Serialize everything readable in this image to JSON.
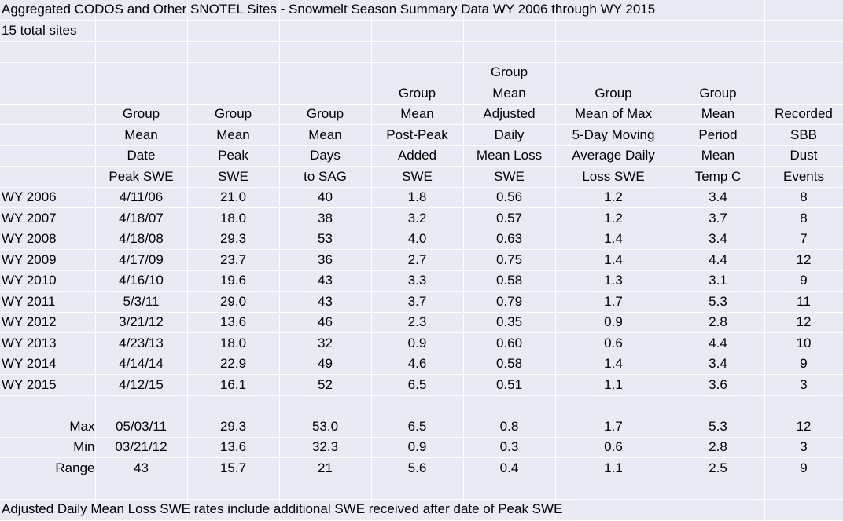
{
  "title": "Aggregated CODOS and Other SNOTEL Sites - Snowmelt Season Summary Data WY 2006 through WY 2015",
  "subtitle": "15 total sites",
  "header_rows": [
    [
      "",
      "",
      "",
      "",
      "",
      "Group",
      "",
      "",
      ""
    ],
    [
      "",
      "",
      "",
      "",
      "Group",
      "Mean",
      "Group",
      "Group",
      ""
    ],
    [
      "",
      "Group",
      "Group",
      "Group",
      "Mean",
      "Adjusted",
      "Mean of Max",
      "Mean",
      "Recorded"
    ],
    [
      "",
      "Mean",
      "Mean",
      "Mean",
      "Post-Peak",
      "Daily",
      "5-Day Moving",
      "Period",
      "SBB"
    ],
    [
      "",
      "Date",
      "Peak",
      "Days",
      "Added",
      "Mean Loss",
      "Average Daily",
      "Mean",
      "Dust"
    ],
    [
      "",
      "Peak SWE",
      "SWE",
      "to SAG",
      "SWE",
      "SWE",
      "Loss SWE",
      "Temp C",
      "Events"
    ]
  ],
  "rows": [
    [
      "WY 2006",
      "4/11/06",
      "21.0",
      "40",
      "1.8",
      "0.56",
      "1.2",
      "3.4",
      "8"
    ],
    [
      "WY 2007",
      "4/18/07",
      "18.0",
      "38",
      "3.2",
      "0.57",
      "1.2",
      "3.7",
      "8"
    ],
    [
      "WY 2008",
      "4/18/08",
      "29.3",
      "53",
      "4.0",
      "0.63",
      "1.4",
      "3.4",
      "7"
    ],
    [
      "WY 2009",
      "4/17/09",
      "23.7",
      "36",
      "2.7",
      "0.75",
      "1.4",
      "4.4",
      "12"
    ],
    [
      "WY 2010",
      "4/16/10",
      "19.6",
      "43",
      "3.3",
      "0.58",
      "1.3",
      "3.1",
      "9"
    ],
    [
      "WY 2011",
      "5/3/11",
      "29.0",
      "43",
      "3.7",
      "0.79",
      "1.7",
      "5.3",
      "11"
    ],
    [
      "WY 2012",
      "3/21/12",
      "13.6",
      "46",
      "2.3",
      "0.35",
      "0.9",
      "2.8",
      "12"
    ],
    [
      "WY 2013",
      "4/23/13",
      "18.0",
      "32",
      "0.9",
      "0.60",
      "0.6",
      "4.4",
      "10"
    ],
    [
      "WY 2014",
      "4/14/14",
      "22.9",
      "49",
      "4.6",
      "0.58",
      "1.4",
      "3.4",
      "9"
    ],
    [
      "WY 2015",
      "4/12/15",
      "16.1",
      "52",
      "6.5",
      "0.51",
      "1.1",
      "3.6",
      "3"
    ]
  ],
  "stats": [
    [
      "Max",
      "05/03/11",
      "29.3",
      "53.0",
      "6.5",
      "0.8",
      "1.7",
      "5.3",
      "12"
    ],
    [
      "Min",
      "03/21/12",
      "13.6",
      "32.3",
      "0.9",
      "0.3",
      "0.6",
      "2.8",
      "3"
    ],
    [
      "Range",
      "43",
      "15.7",
      "21",
      "5.6",
      "0.4",
      "1.1",
      "2.5",
      "9"
    ]
  ],
  "footnote": "Adjusted Daily Mean Loss SWE rates include additional SWE received after date of Peak SWE",
  "colors": {
    "cell_bg": "#e8ebf4",
    "grid_line": "#ffffff",
    "text": "#000000"
  }
}
